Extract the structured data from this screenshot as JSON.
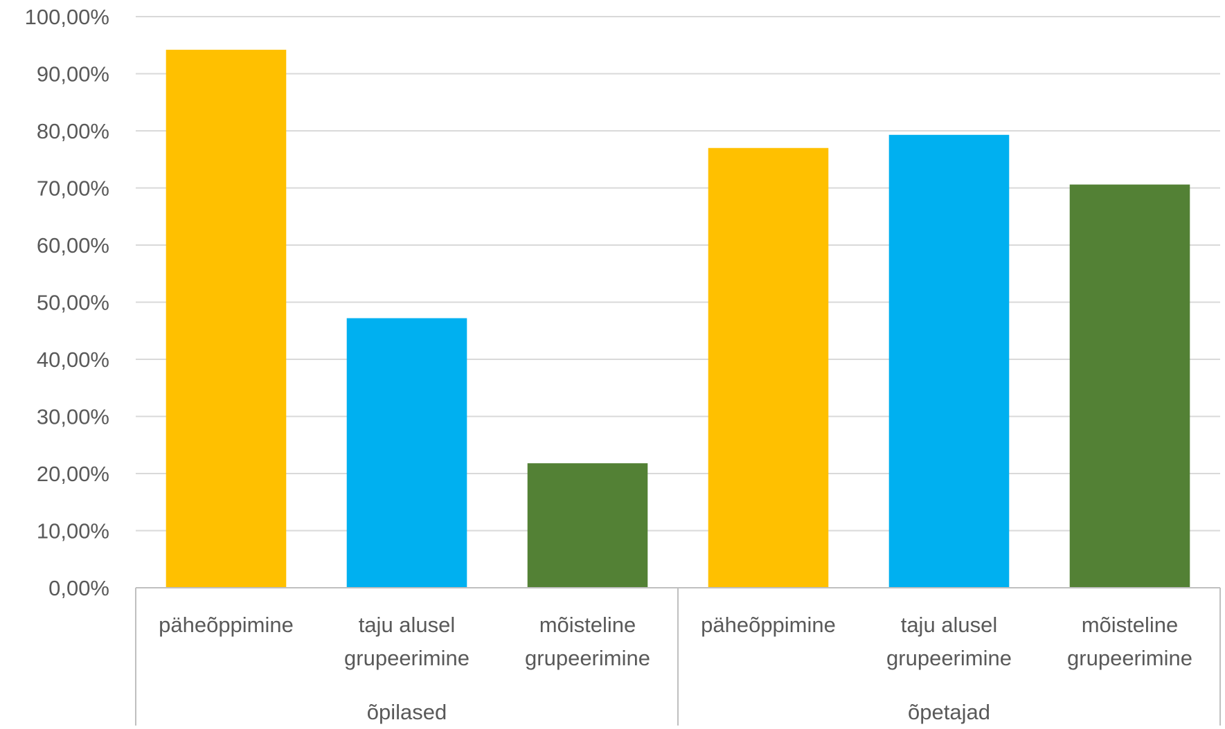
{
  "chart_data": {
    "type": "bar",
    "title": "",
    "xlabel": "",
    "ylabel": "",
    "ylim": [
      0,
      100
    ],
    "y_ticks": [
      "0,00%",
      "10,00%",
      "20,00%",
      "30,00%",
      "40,00%",
      "50,00%",
      "60,00%",
      "70,00%",
      "80,00%",
      "90,00%",
      "100,00%"
    ],
    "grid": true,
    "legend": "none",
    "groups": [
      {
        "name": "õpilased",
        "categories": [
          {
            "label": [
              "päheõppimine"
            ],
            "value": 94.2,
            "color": "#FFC000"
          },
          {
            "label": [
              "taju alusel",
              "grupeerimine"
            ],
            "value": 47.2,
            "color": "#00B0F0"
          },
          {
            "label": [
              "mõisteline",
              "grupeerimine"
            ],
            "value": 21.8,
            "color": "#538135"
          }
        ]
      },
      {
        "name": "õpetajad",
        "categories": [
          {
            "label": [
              "päheõppimine"
            ],
            "value": 77.0,
            "color": "#FFC000"
          },
          {
            "label": [
              "taju alusel",
              "grupeerimine"
            ],
            "value": 79.3,
            "color": "#00B0F0"
          },
          {
            "label": [
              "mõisteline",
              "grupeerimine"
            ],
            "value": 70.6,
            "color": "#538135"
          }
        ]
      }
    ]
  },
  "colors": {
    "gridline": "#D9D9D9",
    "axis": "#BFBFBF",
    "text": "#595959"
  }
}
